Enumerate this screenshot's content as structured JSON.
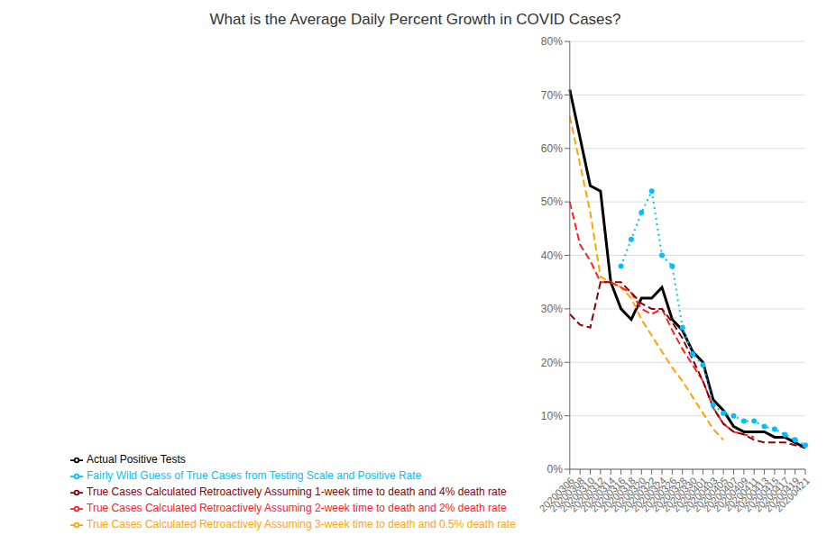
{
  "chart_data": {
    "type": "line",
    "title": "What is the Average Daily Percent Growth in COVID Cases?",
    "categories": [
      "20200306",
      "20200308",
      "20200310",
      "20200312",
      "20200314",
      "20200316",
      "20200318",
      "20200320",
      "20200322",
      "20200324",
      "20200326",
      "20200328",
      "20200330",
      "20200401",
      "20200403",
      "20200405",
      "20200407",
      "20200409",
      "20200411",
      "20200413",
      "20200415",
      "20200417",
      "20200419",
      "20200421"
    ],
    "series": [
      {
        "name": "Actual Positive Tests",
        "color": "#000000",
        "line_style": "solid",
        "values": [
          0.71,
          0.62,
          0.53,
          0.52,
          0.35,
          0.3,
          0.28,
          0.32,
          0.32,
          0.34,
          0.28,
          0.26,
          0.22,
          0.2,
          0.13,
          0.11,
          0.08,
          0.07,
          0.07,
          0.07,
          0.06,
          0.06,
          0.05,
          0.04
        ]
      },
      {
        "name": "Fairly Wild Guess of True Cases from Testing Scale and Positive Rate",
        "color": "#00BFFF",
        "line_style": "dotted",
        "marker": "circle",
        "values": [
          null,
          null,
          null,
          null,
          null,
          0.38,
          0.43,
          0.48,
          0.52,
          0.4,
          0.38,
          0.265,
          0.215,
          0.195,
          0.12,
          0.105,
          0.1,
          0.09,
          0.09,
          0.08,
          0.075,
          0.065,
          0.055,
          0.045
        ]
      },
      {
        "name": "True Cases Calculated Retroactively Assuming 3-week time to death and 0.5% death rate",
        "color": "#FFA500",
        "line_style": "dashed",
        "values": [
          0.66,
          0.57,
          0.48,
          0.36,
          0.35,
          0.34,
          0.32,
          0.28,
          0.25,
          0.22,
          0.19,
          0.165,
          0.135,
          0.105,
          0.075,
          0.055,
          null,
          null,
          null,
          null,
          null,
          null,
          null,
          null
        ]
      },
      {
        "name": "True Cases Calculated Retroactively Assuming 2-week time to death and 2% death rate",
        "color": "#FF2020",
        "line_style": "dashed",
        "values": [
          0.5,
          0.42,
          0.39,
          0.35,
          0.35,
          0.34,
          0.33,
          0.3,
          0.29,
          0.3,
          0.26,
          0.225,
          0.195,
          0.165,
          0.115,
          0.085,
          0.07,
          0.065,
          0.06,
          null,
          null,
          null,
          null,
          null
        ]
      },
      {
        "name": "True Cases Calculated Retroactively Assuming 1-week time to death and 4% death rate",
        "color": "#8B0000",
        "line_style": "dashed",
        "values": [
          0.29,
          0.27,
          0.265,
          0.35,
          0.35,
          0.35,
          0.33,
          0.31,
          0.3,
          0.3,
          0.275,
          0.245,
          0.205,
          0.165,
          0.115,
          0.085,
          0.07,
          0.065,
          0.055,
          0.05,
          0.05,
          0.05,
          0.045,
          0.04
        ]
      }
    ],
    "ylim": [
      0,
      0.8
    ],
    "yticks": [
      {
        "value": 0.0,
        "label": "0%"
      },
      {
        "value": 0.1,
        "label": "10%"
      },
      {
        "value": 0.2,
        "label": "20%"
      },
      {
        "value": 0.3,
        "label": "30%"
      },
      {
        "value": 0.4,
        "label": "40%"
      },
      {
        "value": 0.5,
        "label": "50%"
      },
      {
        "value": 0.6,
        "label": "60%"
      },
      {
        "value": 0.7,
        "label": "70%"
      },
      {
        "value": 0.8,
        "label": "80%"
      }
    ],
    "grid": true,
    "legend": "bottom"
  }
}
